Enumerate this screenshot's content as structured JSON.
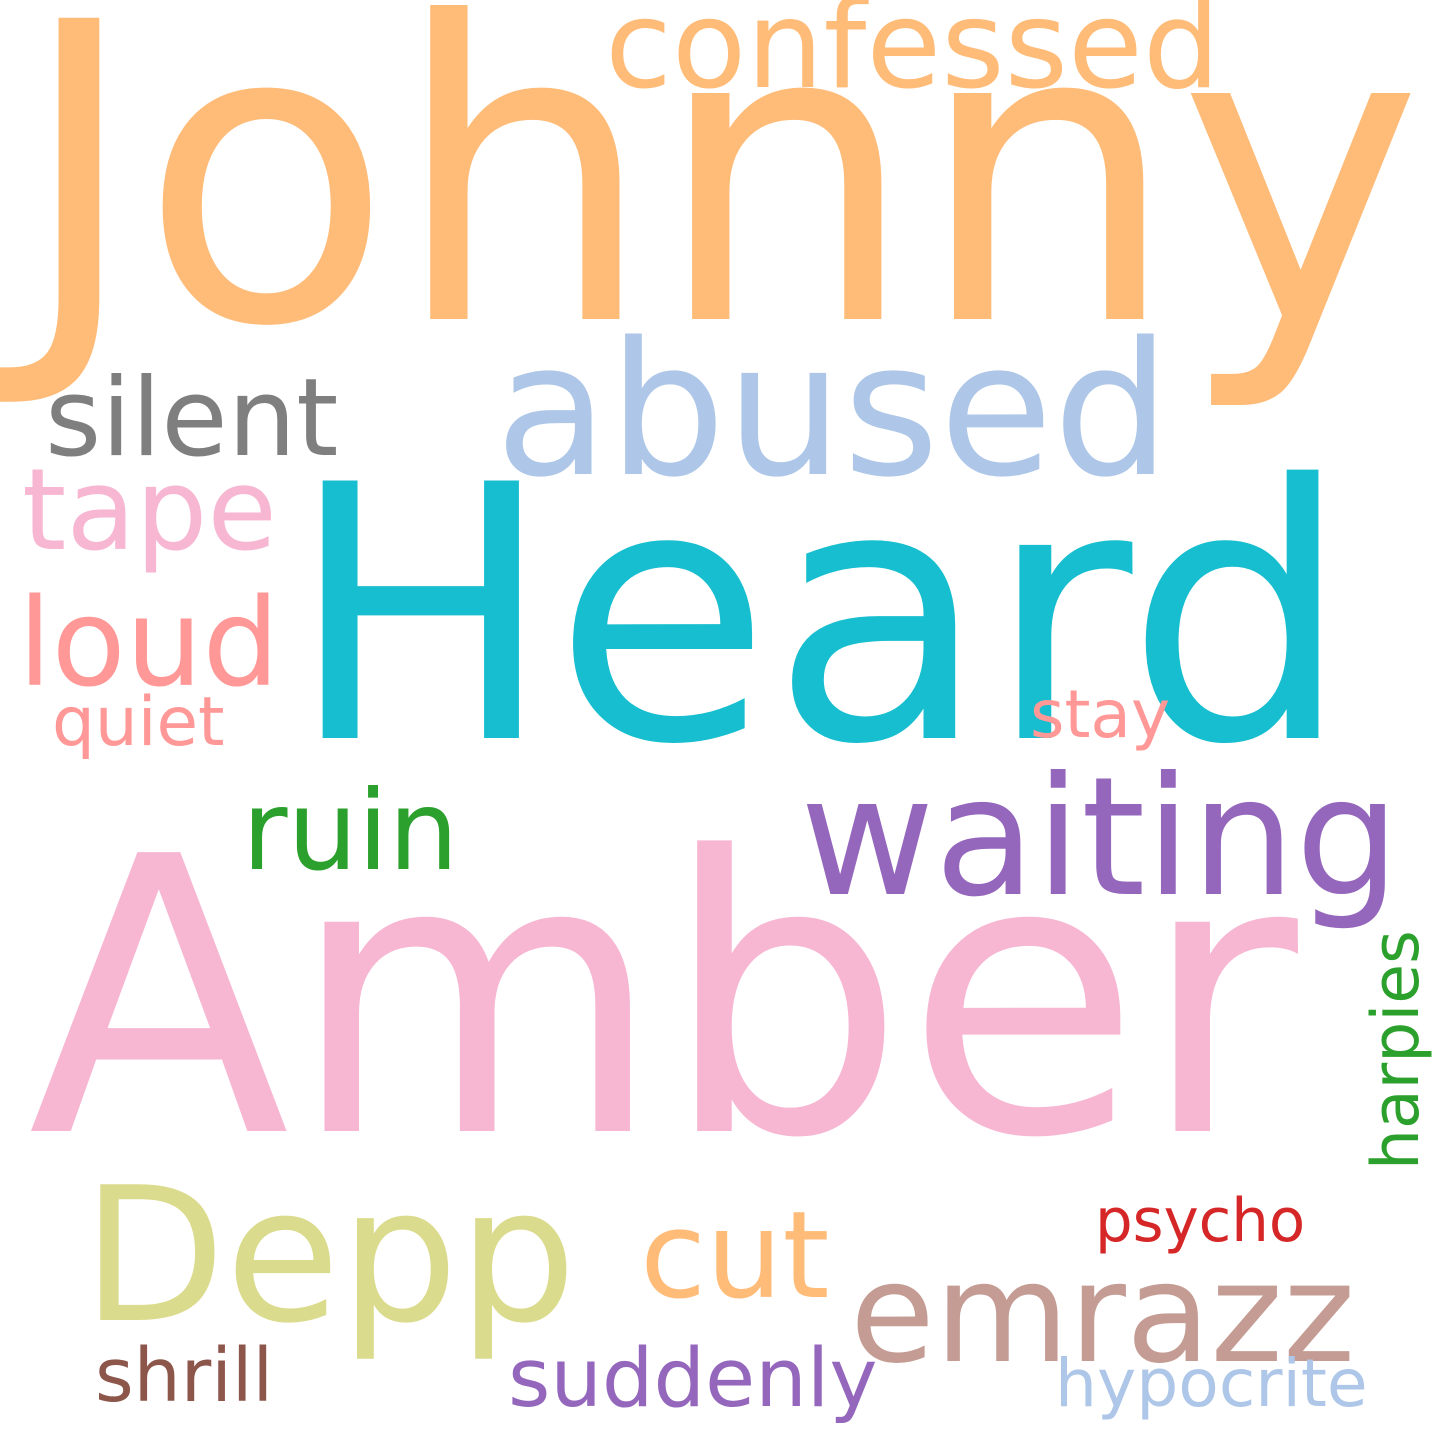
{
  "cloud": {
    "background": "#ffffff",
    "words": [
      {
        "id": "Johnny",
        "text": "Johnny",
        "color": "#ffbb78"
      },
      {
        "id": "confessed",
        "text": "confessed",
        "color": "#ffbb78"
      },
      {
        "id": "abused",
        "text": "abused",
        "color": "#aec7e8"
      },
      {
        "id": "silent",
        "text": "silent",
        "color": "#7f7f7f"
      },
      {
        "id": "tape",
        "text": "tape",
        "color": "#f7b6d2"
      },
      {
        "id": "Heard",
        "text": "Heard",
        "color": "#17becf"
      },
      {
        "id": "loud",
        "text": "loud",
        "color": "#ff9896"
      },
      {
        "id": "quiet",
        "text": "quiet",
        "color": "#ff9896"
      },
      {
        "id": "stay",
        "text": "stay",
        "color": "#ff9896"
      },
      {
        "id": "ruin",
        "text": "ruin",
        "color": "#2ca02c"
      },
      {
        "id": "waiting",
        "text": "waiting",
        "color": "#9467bd"
      },
      {
        "id": "Amber",
        "text": "Amber",
        "color": "#f7b6d2"
      },
      {
        "id": "harpies",
        "text": "harpies",
        "color": "#2ca02c"
      },
      {
        "id": "Depp",
        "text": "Depp",
        "color": "#dbdb8d"
      },
      {
        "id": "cut",
        "text": "cut",
        "color": "#ffbb78"
      },
      {
        "id": "psycho",
        "text": "psycho",
        "color": "#d62728"
      },
      {
        "id": "emrazz",
        "text": "emrazz",
        "color": "#c49c94"
      },
      {
        "id": "shrill",
        "text": "shrill",
        "color": "#8c564b"
      },
      {
        "id": "suddenly",
        "text": "suddenly",
        "color": "#9467bd"
      },
      {
        "id": "hypocrite",
        "text": "hypocrite",
        "color": "#aec7e8"
      }
    ]
  }
}
